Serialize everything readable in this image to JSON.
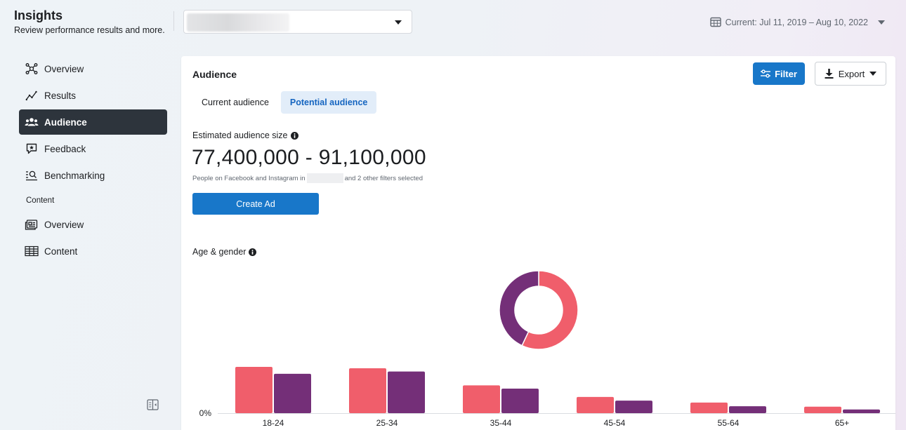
{
  "header": {
    "title": "Insights",
    "subtitle": "Review performance results and more.",
    "date_range": "Current: Jul 11, 2019 – Aug 10, 2022"
  },
  "sidebar": {
    "items": [
      {
        "label": "Overview",
        "icon": "network-icon"
      },
      {
        "label": "Results",
        "icon": "trend-line-icon"
      },
      {
        "label": "Audience",
        "icon": "people-icon",
        "active": true
      },
      {
        "label": "Feedback",
        "icon": "star-bubble-icon"
      },
      {
        "label": "Benchmarking",
        "icon": "magnifier-list-icon"
      }
    ],
    "section_label": "Content",
    "content_items": [
      {
        "label": "Overview",
        "icon": "posts-icon"
      },
      {
        "label": "Content",
        "icon": "table-icon"
      }
    ]
  },
  "card": {
    "title": "Audience",
    "filter_label": "Filter",
    "export_label": "Export",
    "tabs": [
      {
        "label": "Current audience",
        "selected": false
      },
      {
        "label": "Potential audience",
        "selected": true
      }
    ],
    "estimated_label": "Estimated audience size",
    "estimated_value": "77,400,000 - 91,100,000",
    "note_before": "People on Facebook and Instagram in",
    "note_after": "and 2 other filters selected",
    "create_ad_label": "Create Ad",
    "age_gender_label": "Age & gender"
  },
  "colors": {
    "women": "#f05e6b",
    "men": "#742f78",
    "accent": "#1877c9"
  },
  "chart_data": [
    {
      "type": "pie",
      "values": [
        57,
        43
      ],
      "colors": [
        "#f05e6b",
        "#742f78"
      ]
    },
    {
      "type": "bar",
      "categories": [
        "18-24",
        "25-34",
        "35-44",
        "45-54",
        "55-64",
        "65+"
      ],
      "series": [
        {
          "values": [
            100,
            97,
            60,
            35,
            23,
            14
          ]
        },
        {
          "values": [
            85,
            90,
            53,
            27,
            15,
            8
          ]
        }
      ],
      "y_tick": "0%",
      "colors": [
        "#f05e6b",
        "#742f78"
      ]
    }
  ]
}
